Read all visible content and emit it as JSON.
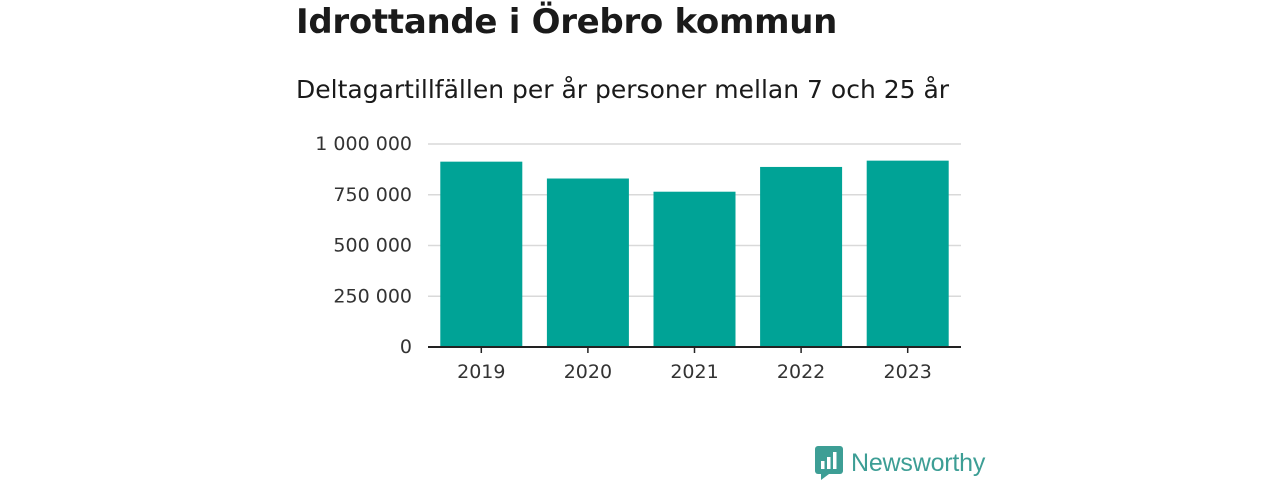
{
  "header": {
    "title": "Idrottande i Örebro kommun",
    "subtitle": "Deltagartillfällen per år personer mellan 7 och 25 år"
  },
  "branding": {
    "logo_text": "Newsworthy",
    "logo_color": "#3d9e95"
  },
  "chart_data": {
    "type": "bar",
    "categories": [
      "2019",
      "2020",
      "2021",
      "2022",
      "2023"
    ],
    "values": [
      913000,
      830000,
      765000,
      887000,
      918000
    ],
    "ylim": [
      0,
      1000000
    ],
    "yticks": [
      0,
      250000,
      500000,
      750000,
      1000000
    ],
    "ytick_labels": [
      "0",
      "250 000",
      "500 000",
      "750 000",
      "1 000 000"
    ],
    "bar_color": "#00a396",
    "grid": true,
    "legend": "none"
  }
}
